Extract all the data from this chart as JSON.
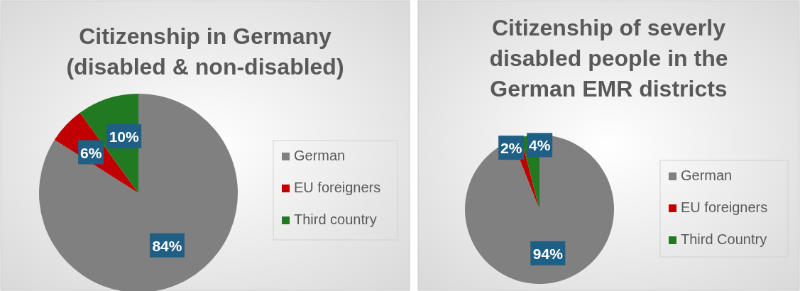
{
  "chart_data": [
    {
      "type": "pie",
      "title": "Citizenship in Germany\n(disabled & non-disabled)",
      "categories": [
        "German",
        "EU foreigners",
        "Third country"
      ],
      "values": [
        84,
        6,
        10
      ],
      "colors": [
        "#808080",
        "#c00000",
        "#217a21"
      ],
      "value_labels": [
        "84%",
        "6%",
        "10%"
      ],
      "legend": "right"
    },
    {
      "type": "pie",
      "title": "Citizenship of severly\ndisabled people in the\nGerman EMR districts",
      "categories": [
        "German",
        "EU foreigners",
        "Third Country"
      ],
      "values": [
        94,
        2,
        4
      ],
      "colors": [
        "#808080",
        "#c00000",
        "#217a21"
      ],
      "value_labels": [
        "94%",
        "2%",
        "4%"
      ],
      "legend": "right"
    }
  ]
}
